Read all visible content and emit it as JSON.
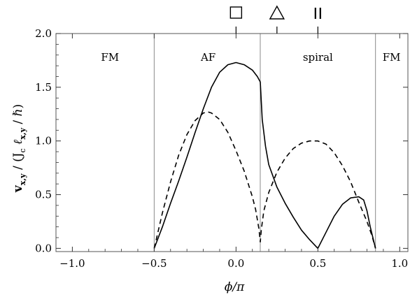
{
  "chart_data": {
    "type": "line",
    "xlabel": "ϕ/π",
    "ylabel": "v_{x,y} / (J_c ℓ_{x,y} / ℏ)",
    "xlim": [
      -1.1,
      1.05
    ],
    "ylim": [
      -0.03,
      2.0
    ],
    "x_ticks": [
      -1.0,
      -0.5,
      0.0,
      0.5,
      1.0
    ],
    "x_tick_labels": [
      "−1.0",
      "−0.5",
      "0.0",
      "0.5",
      "1.0"
    ],
    "y_ticks": [
      0.0,
      0.5,
      1.0,
      1.5,
      2.0
    ],
    "y_tick_labels": [
      "0.0",
      "0.5",
      "1.0",
      "1.5",
      "2.0"
    ],
    "phase_boundaries": [
      -0.5,
      0.148,
      0.852
    ],
    "regions": [
      {
        "label": "FM",
        "x": -0.77
      },
      {
        "label": "AF",
        "x": -0.17
      },
      {
        "label": "spiral",
        "x": 0.5
      },
      {
        "label": "FM",
        "x": 0.95
      }
    ],
    "top_markers": [
      {
        "symbol": "square",
        "label": "□",
        "x": 0.0
      },
      {
        "symbol": "triangle",
        "label": "△",
        "x": 0.25
      },
      {
        "symbol": "parallel",
        "label": "II",
        "x": 0.5
      }
    ],
    "series": [
      {
        "style": "solid",
        "x": [
          -0.5,
          -0.45,
          -0.4,
          -0.35,
          -0.3,
          -0.25,
          -0.2,
          -0.15,
          -0.1,
          -0.05,
          0.0,
          0.05,
          0.1,
          0.13,
          0.148,
          0.16,
          0.18,
          0.2,
          0.25,
          0.3,
          0.35,
          0.4,
          0.45,
          0.5,
          0.55,
          0.6,
          0.65,
          0.7,
          0.75,
          0.78,
          0.8,
          0.82,
          0.852
        ],
        "y": [
          0.0,
          0.2,
          0.42,
          0.63,
          0.85,
          1.08,
          1.3,
          1.5,
          1.64,
          1.71,
          1.73,
          1.71,
          1.66,
          1.6,
          1.55,
          1.2,
          0.95,
          0.78,
          0.57,
          0.42,
          0.29,
          0.17,
          0.08,
          0.0,
          0.15,
          0.3,
          0.41,
          0.47,
          0.48,
          0.45,
          0.35,
          0.2,
          0.0
        ]
      },
      {
        "style": "dashed",
        "x": [
          -0.5,
          -0.45,
          -0.4,
          -0.35,
          -0.3,
          -0.25,
          -0.2,
          -0.17,
          -0.15,
          -0.1,
          -0.05,
          0.0,
          0.05,
          0.1,
          0.12,
          0.14,
          0.148,
          0.155,
          0.17,
          0.2,
          0.25,
          0.3,
          0.35,
          0.4,
          0.45,
          0.5,
          0.55,
          0.6,
          0.65,
          0.7,
          0.75,
          0.8,
          0.83,
          0.852
        ],
        "y": [
          0.0,
          0.33,
          0.62,
          0.87,
          1.06,
          1.19,
          1.26,
          1.27,
          1.26,
          1.2,
          1.08,
          0.91,
          0.72,
          0.48,
          0.36,
          0.18,
          0.06,
          0.18,
          0.35,
          0.52,
          0.71,
          0.84,
          0.93,
          0.98,
          1.0,
          1.0,
          0.97,
          0.89,
          0.77,
          0.62,
          0.43,
          0.25,
          0.12,
          0.0
        ]
      }
    ]
  }
}
